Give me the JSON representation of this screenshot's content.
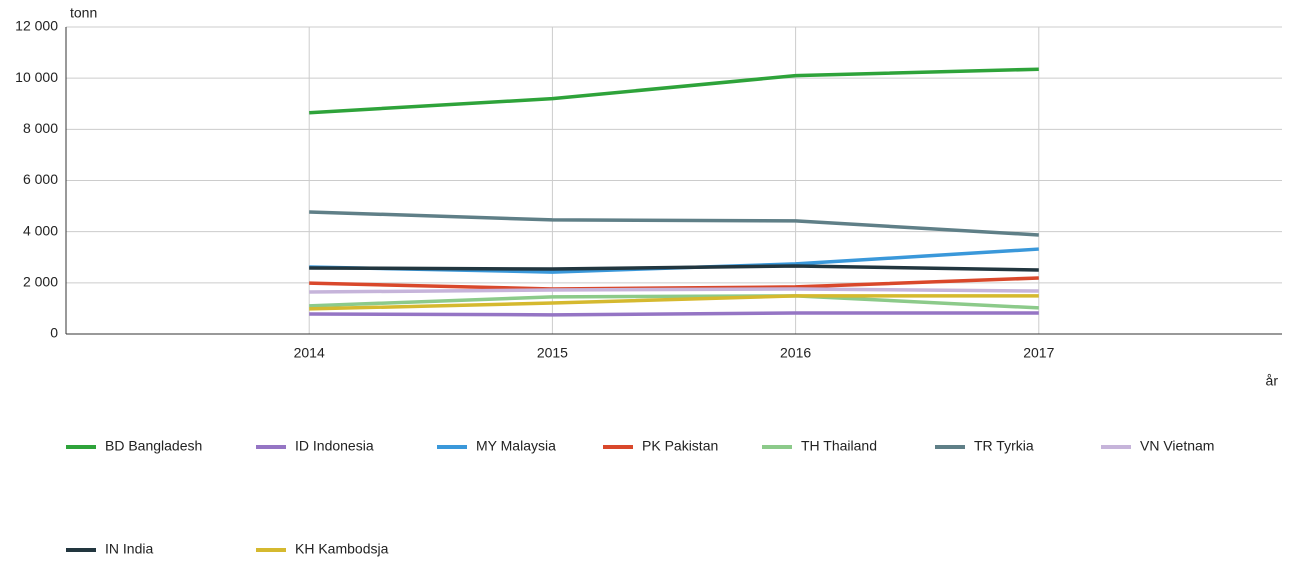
{
  "chart_data": {
    "type": "line",
    "y_label": "tonn",
    "x_label": "år",
    "x": [
      2014,
      2015,
      2016,
      2017
    ],
    "xlim": [
      2013,
      2018
    ],
    "xticks": [
      2014,
      2015,
      2016,
      2017
    ],
    "ylim": [
      0,
      12000
    ],
    "yticks": [
      0,
      {
        "value": 2000,
        "label": "2 000"
      },
      {
        "value": 4000,
        "label": "4 000"
      },
      {
        "value": 6000,
        "label": "6 000"
      },
      {
        "value": 8000,
        "label": "8 000"
      },
      {
        "value": 10000,
        "label": "10 000"
      },
      {
        "value": 12000,
        "label": "12 000"
      }
    ],
    "grid": true,
    "legend": "bottom",
    "series": [
      {
        "name": "BD Bangladesh",
        "color": "#2ea33a",
        "values": [
          8650,
          9200,
          10100,
          10350
        ]
      },
      {
        "name": "ID Indonesia",
        "color": "#9575c4",
        "values": [
          780,
          750,
          820,
          820
        ]
      },
      {
        "name": "MY Malaysia",
        "color": "#3a98da",
        "values": [
          2620,
          2420,
          2740,
          3320
        ]
      },
      {
        "name": "PK Pakistan",
        "color": "#d9482b",
        "values": [
          1990,
          1760,
          1840,
          2190
        ]
      },
      {
        "name": "TH Thailand",
        "color": "#8cca8a",
        "values": [
          1100,
          1450,
          1490,
          1020
        ]
      },
      {
        "name": "TR Tyrkia",
        "color": "#5f7f87",
        "values": [
          4770,
          4460,
          4420,
          3870
        ]
      },
      {
        "name": "VN Vietnam",
        "color": "#c6b4da",
        "values": [
          1640,
          1720,
          1760,
          1680
        ]
      },
      {
        "name": "IN India",
        "color": "#22363f",
        "values": [
          2580,
          2540,
          2660,
          2500
        ]
      },
      {
        "name": "KH Kambodsja",
        "color": "#d5b92f",
        "values": [
          980,
          1210,
          1490,
          1490
        ]
      }
    ]
  }
}
